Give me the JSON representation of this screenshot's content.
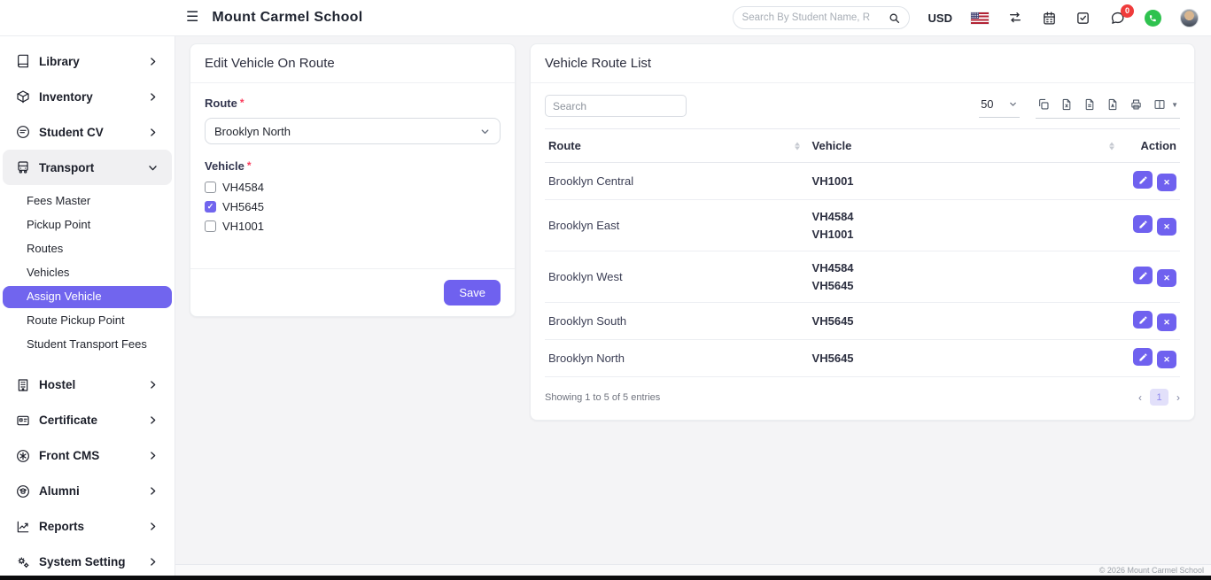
{
  "accent_color": "#6F61EF",
  "header": {
    "title": "Mount Carmel School",
    "search_placeholder": "Search By Student Name, R",
    "currency": "USD",
    "chat_badge": "0",
    "icons": [
      "menu-icon",
      "search-icon",
      "us-flag-icon",
      "exchange-icon",
      "calendar-icon",
      "task-check-icon",
      "chat-icon",
      "whatsapp-icon",
      "avatar"
    ]
  },
  "sidebar": {
    "items": [
      {
        "label": "Library",
        "icon": "book-icon",
        "expanded": false
      },
      {
        "label": "Inventory",
        "icon": "package-icon",
        "expanded": false
      },
      {
        "label": "Student CV",
        "icon": "cv-icon",
        "expanded": false
      },
      {
        "label": "Transport",
        "icon": "bus-icon",
        "expanded": true,
        "children": [
          "Fees Master",
          "Pickup Point",
          "Routes",
          "Vehicles",
          "Assign Vehicle",
          "Route Pickup Point",
          "Student Transport Fees"
        ],
        "active_child": "Assign Vehicle"
      },
      {
        "label": "Hostel",
        "icon": "building-icon",
        "expanded": false
      },
      {
        "label": "Certificate",
        "icon": "id-card-icon",
        "expanded": false
      },
      {
        "label": "Front CMS",
        "icon": "star-circle-icon",
        "expanded": false
      },
      {
        "label": "Alumni",
        "icon": "graduate-icon",
        "expanded": false
      },
      {
        "label": "Reports",
        "icon": "chart-icon",
        "expanded": false
      },
      {
        "label": "System Setting",
        "icon": "gears-icon",
        "expanded": false
      }
    ]
  },
  "edit_form": {
    "title": "Edit Vehicle On Route",
    "route_label": "Route",
    "route_value": "Brooklyn North",
    "vehicle_label": "Vehicle",
    "vehicles": [
      {
        "label": "VH4584",
        "checked": false
      },
      {
        "label": "VH5645",
        "checked": true
      },
      {
        "label": "VH1001",
        "checked": false
      }
    ],
    "save_label": "Save"
  },
  "route_list": {
    "title": "Vehicle Route List",
    "search_placeholder": "Search",
    "page_size": "50",
    "export_icons": [
      "copy-icon",
      "excel-icon",
      "csv-icon",
      "pdf-icon",
      "print-icon",
      "columns-icon"
    ],
    "columns": [
      "Route",
      "Vehicle",
      "Action"
    ],
    "rows": [
      {
        "route": "Brooklyn Central",
        "vehicles": [
          "VH1001"
        ]
      },
      {
        "route": "Brooklyn East",
        "vehicles": [
          "VH4584",
          "VH1001"
        ]
      },
      {
        "route": "Brooklyn West",
        "vehicles": [
          "VH4584",
          "VH5645"
        ]
      },
      {
        "route": "Brooklyn South",
        "vehicles": [
          "VH5645"
        ]
      },
      {
        "route": "Brooklyn North",
        "vehicles": [
          "VH5645"
        ]
      }
    ],
    "action_icons": [
      "edit-icon",
      "delete-icon"
    ],
    "summary": "Showing 1 to 5 of 5 entries",
    "current_page": "1"
  },
  "footer": {
    "copyright": "© 2026 Mount Carmel School"
  }
}
